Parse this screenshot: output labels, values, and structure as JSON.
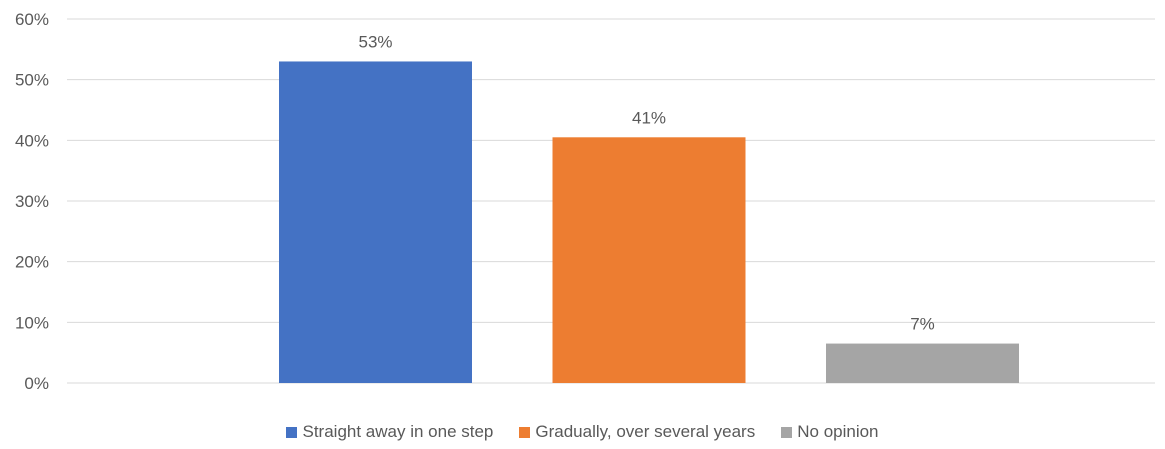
{
  "chart_data": {
    "type": "bar",
    "title": "",
    "xlabel": "",
    "ylabel": "",
    "ylim": [
      0,
      60
    ],
    "yticks": [
      "0%",
      "10%",
      "20%",
      "30%",
      "40%",
      "50%",
      "60%"
    ],
    "grid": true,
    "legend_position": "bottom",
    "series": [
      {
        "name": "Straight away in one step",
        "value": 53,
        "label": "53%",
        "color": "#4472C4"
      },
      {
        "name": "Gradually, over several years",
        "value": 40.5,
        "label": "41%",
        "color": "#ED7D31"
      },
      {
        "name": "No opinion",
        "value": 6.5,
        "label": "7%",
        "color": "#A5A5A5"
      }
    ]
  }
}
